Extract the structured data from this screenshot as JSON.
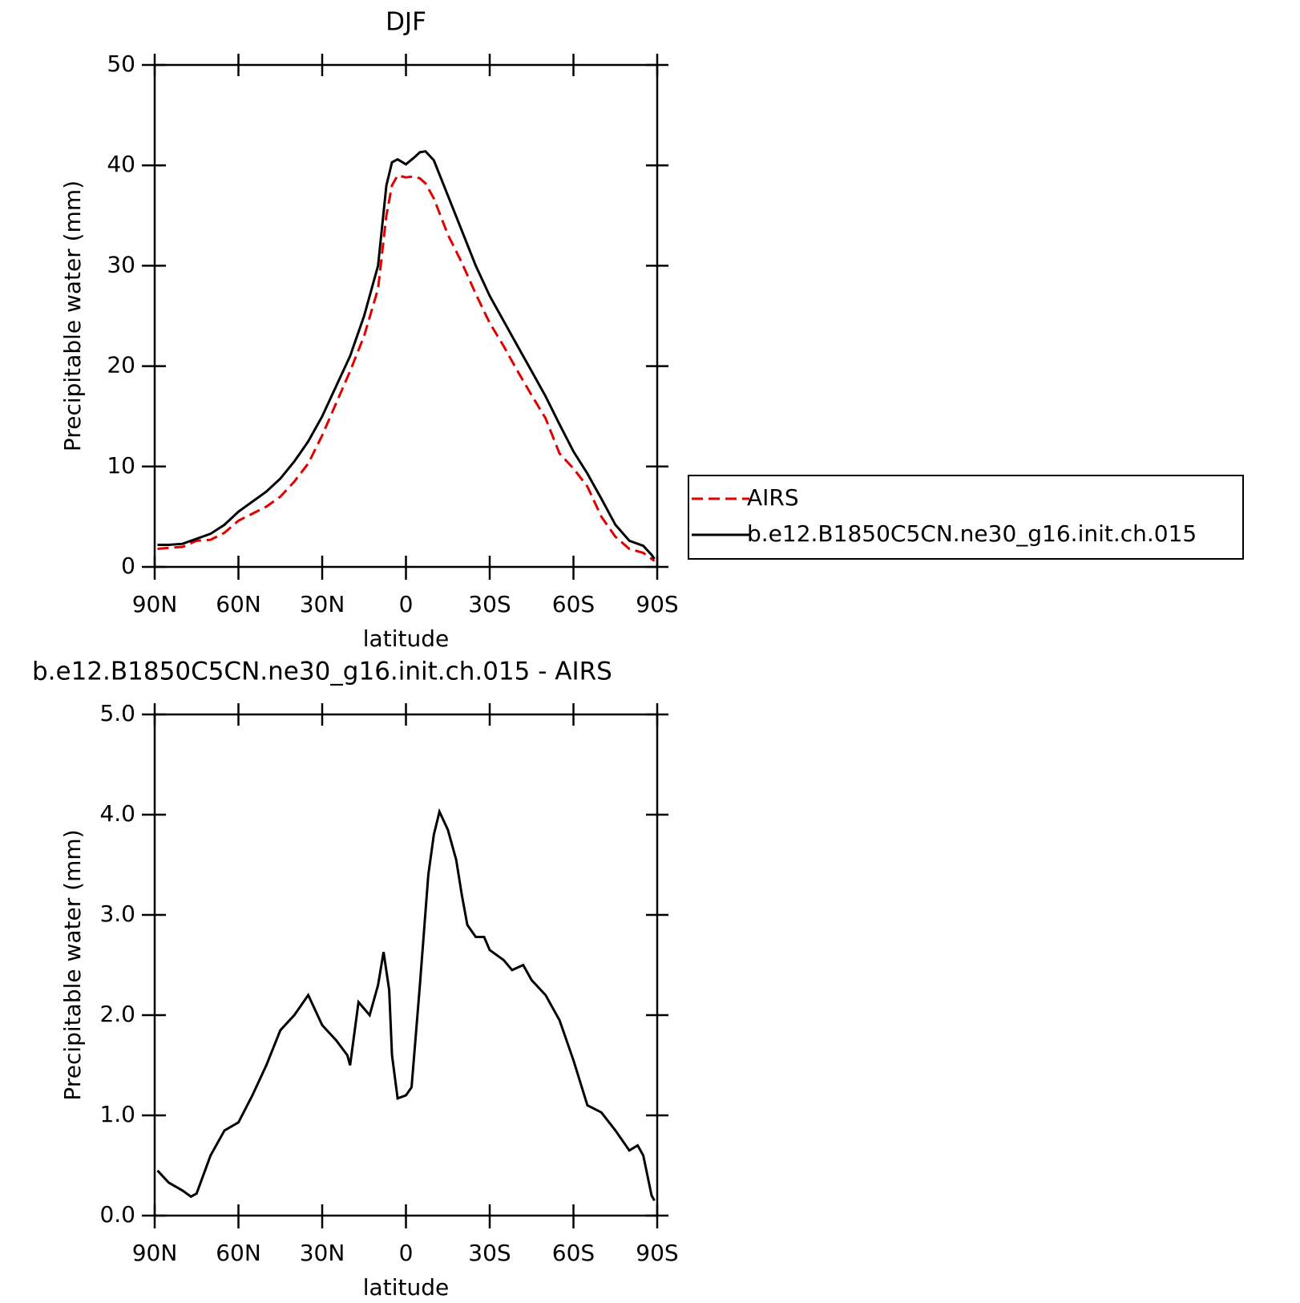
{
  "chart_data": [
    {
      "type": "line",
      "title": "DJF",
      "xlabel": "latitude",
      "ylabel": "Precipitable water (mm)",
      "x": [
        89,
        85,
        80,
        75,
        70,
        65,
        60,
        55,
        50,
        45,
        40,
        35,
        30,
        25,
        20,
        15,
        10,
        7,
        5,
        3,
        0,
        -3,
        -5,
        -7,
        -10,
        -15,
        -20,
        -25,
        -30,
        -35,
        -40,
        -45,
        -50,
        -55,
        -60,
        -65,
        -70,
        -75,
        -80,
        -85,
        -88,
        -89
      ],
      "series": [
        {
          "name": "AIRS",
          "color": "#e00000",
          "dashed": true,
          "values": [
            1.8,
            1.9,
            2.0,
            2.6,
            2.7,
            3.4,
            4.6,
            5.3,
            6.0,
            7.0,
            8.5,
            10.3,
            13.1,
            16.3,
            19.5,
            23,
            27.7,
            35,
            38.0,
            39.0,
            38.8,
            38.9,
            38.7,
            38.2,
            36.7,
            33.1,
            30.3,
            27.2,
            24.3,
            22,
            19.5,
            17.1,
            14.8,
            11.3,
            9.8,
            8.0,
            5.0,
            3.0,
            1.8,
            1.4,
            0.8,
            0.6
          ]
        },
        {
          "name": "b.e12.B1850C5CN.ne30_g16.init.ch.015",
          "color": "#000000",
          "dashed": false,
          "values": [
            2.2,
            2.2,
            2.3,
            2.8,
            3.3,
            4.2,
            5.5,
            6.5,
            7.5,
            8.8,
            10.5,
            12.5,
            15,
            18,
            21,
            25,
            30,
            38,
            40.3,
            40.6,
            40.1,
            40.8,
            41.3,
            41.4,
            40.5,
            37,
            33.5,
            30,
            27,
            24.5,
            22,
            19.5,
            17,
            14.2,
            11.5,
            9.3,
            6.8,
            4.2,
            2.6,
            2.1,
            1.2,
            0.8
          ]
        }
      ],
      "xlim": [
        90,
        -90
      ],
      "xticks": [
        {
          "value": 90,
          "label": "90N"
        },
        {
          "value": 60,
          "label": "60N"
        },
        {
          "value": 30,
          "label": "30N"
        },
        0,
        {
          "value": -30,
          "label": "30S"
        },
        {
          "value": -60,
          "label": "60S"
        },
        {
          "value": -90,
          "label": "90S"
        }
      ],
      "ylim": [
        0,
        50
      ],
      "yticks": [
        0,
        10,
        20,
        30,
        40,
        50
      ],
      "legend": "right"
    },
    {
      "type": "line",
      "title": "b.e12.B1850C5CN.ne30_g16.init.ch.015 - AIRS",
      "xlabel": "latitude",
      "ylabel": "Precipitable water (mm)",
      "x": [
        89,
        85,
        80,
        77,
        75,
        70,
        65,
        60,
        55,
        50,
        45,
        40,
        35,
        30,
        25,
        21,
        20,
        17,
        13,
        10,
        8,
        6,
        5,
        3,
        0,
        -2,
        -5,
        -8,
        -10,
        -12,
        -15,
        -18,
        -20,
        -22,
        -25,
        -28,
        -30,
        -35,
        -38,
        -42,
        -45,
        -50,
        -55,
        -60,
        -65,
        -70,
        -75,
        -80,
        -83,
        -85,
        -88,
        -89
      ],
      "values": [
        0.45,
        0.33,
        0.25,
        0.19,
        0.22,
        0.6,
        0.85,
        0.93,
        1.2,
        1.5,
        1.85,
        2.0,
        2.2,
        1.9,
        1.75,
        1.6,
        1.5,
        2.13,
        2.0,
        2.3,
        2.63,
        2.25,
        1.6,
        1.17,
        1.2,
        1.28,
        2.3,
        3.4,
        3.8,
        4.03,
        3.85,
        3.55,
        3.2,
        2.9,
        2.78,
        2.78,
        2.65,
        2.55,
        2.45,
        2.5,
        2.35,
        2.2,
        1.95,
        1.55,
        1.1,
        1.03,
        0.85,
        0.65,
        0.7,
        0.6,
        0.2,
        0.15
      ],
      "color": "#000000",
      "xlim": [
        90,
        -90
      ],
      "xticks": [
        {
          "value": 90,
          "label": "90N"
        },
        {
          "value": 60,
          "label": "60N"
        },
        {
          "value": 30,
          "label": "30N"
        },
        0,
        {
          "value": -30,
          "label": "30S"
        },
        {
          "value": -60,
          "label": "60S"
        },
        {
          "value": -90,
          "label": "90S"
        }
      ],
      "ylim": [
        0,
        5
      ],
      "yticks": [
        {
          "value": 0,
          "label": "0.0"
        },
        {
          "value": 1,
          "label": "1.0"
        },
        {
          "value": 2,
          "label": "2.0"
        },
        {
          "value": 3,
          "label": "3.0"
        },
        {
          "value": 4,
          "label": "4.0"
        },
        {
          "value": 5,
          "label": "5.0"
        }
      ]
    }
  ]
}
